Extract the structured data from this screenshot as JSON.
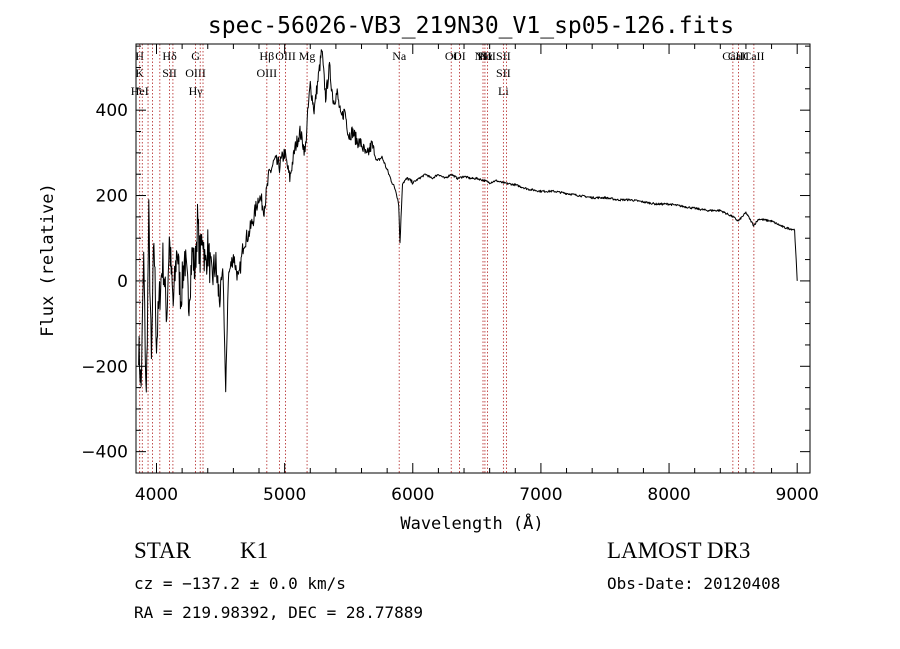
{
  "chart_data": {
    "type": "line",
    "title": "spec-56026-VB3_219N30_V1_sp05-126.fits",
    "xlabel": "Wavelength (Å)",
    "ylabel": "Flux (relative)",
    "xlim": [
      3840,
      9100
    ],
    "ylim": [
      -450,
      555
    ],
    "xticks": [
      4000,
      5000,
      6000,
      7000,
      8000,
      9000
    ],
    "xtick_labels": [
      "4000",
      "5000",
      "6000",
      "7000",
      "8000",
      "9000"
    ],
    "yticks": [
      -400,
      -200,
      0,
      200,
      400
    ],
    "ytick_labels": [
      "−400",
      "−200",
      "0",
      "200",
      "400"
    ],
    "line_color": "#000000",
    "marker_color": "#b22222",
    "series": [
      {
        "name": "flux",
        "x": [
          3860,
          3880,
          3900,
          3920,
          3940,
          3960,
          3980,
          4000,
          4020,
          4050,
          4080,
          4100,
          4130,
          4160,
          4190,
          4220,
          4250,
          4280,
          4300,
          4320,
          4340,
          4360,
          4380,
          4400,
          4430,
          4460,
          4490,
          4520,
          4540,
          4560,
          4600,
          4640,
          4680,
          4720,
          4760,
          4800,
          4840,
          4880,
          4920,
          4960,
          5000,
          5040,
          5080,
          5120,
          5160,
          5180,
          5200,
          5230,
          5260,
          5290,
          5320,
          5350,
          5380,
          5410,
          5440,
          5470,
          5500,
          5530,
          5560,
          5600,
          5640,
          5680,
          5720,
          5760,
          5800,
          5840,
          5870,
          5890,
          5900,
          5920,
          5960,
          6000,
          6050,
          6100,
          6150,
          6200,
          6250,
          6300,
          6350,
          6400,
          6450,
          6500,
          6560,
          6600,
          6650,
          6700,
          6800,
          6900,
          7000,
          7100,
          7200,
          7300,
          7400,
          7500,
          7600,
          7700,
          7800,
          7900,
          8000,
          8100,
          8200,
          8300,
          8400,
          8500,
          8540,
          8600,
          8660,
          8700,
          8800,
          8900,
          8980,
          9000
        ],
        "y": [
          -150,
          -250,
          50,
          -280,
          150,
          -200,
          100,
          -150,
          -50,
          50,
          -80,
          100,
          -60,
          80,
          -40,
          60,
          -50,
          70,
          20,
          140,
          50,
          120,
          30,
          80,
          0,
          40,
          -40,
          20,
          -270,
          10,
          60,
          0,
          90,
          110,
          150,
          200,
          170,
          250,
          280,
          270,
          300,
          240,
          310,
          350,
          300,
          390,
          460,
          400,
          470,
          540,
          430,
          500,
          420,
          440,
          380,
          400,
          340,
          350,
          330,
          320,
          290,
          320,
          280,
          290,
          260,
          230,
          210,
          180,
          90,
          230,
          240,
          230,
          240,
          250,
          240,
          250,
          240,
          250,
          240,
          245,
          240,
          240,
          235,
          230,
          235,
          230,
          225,
          215,
          210,
          210,
          205,
          200,
          195,
          195,
          190,
          190,
          185,
          180,
          180,
          175,
          170,
          165,
          165,
          150,
          140,
          160,
          130,
          145,
          140,
          125,
          120,
          0
        ]
      }
    ],
    "lines": [
      {
        "x": 3869,
        "labels": [
          "H",
          "K",
          "HeI"
        ]
      },
      {
        "x": 3889,
        "labels": []
      },
      {
        "x": 3934,
        "labels": []
      },
      {
        "x": 3969,
        "labels": []
      },
      {
        "x": 4026,
        "labels": []
      },
      {
        "x": 4102,
        "labels": [
          "Hδ",
          "SII"
        ]
      },
      {
        "x": 4128,
        "labels": []
      },
      {
        "x": 4305,
        "labels": [
          "G",
          "OIII",
          "Hγ"
        ]
      },
      {
        "x": 4341,
        "labels": []
      },
      {
        "x": 4363,
        "labels": []
      },
      {
        "x": 4861,
        "labels": [
          "Hβ",
          "OIII"
        ]
      },
      {
        "x": 4959,
        "labels": []
      },
      {
        "x": 5007,
        "labels": [
          "OIII"
        ]
      },
      {
        "x": 5175,
        "labels": [
          "Mg"
        ]
      },
      {
        "x": 5894,
        "labels": [
          "Na"
        ]
      },
      {
        "x": 6300,
        "labels": [
          "OI"
        ]
      },
      {
        "x": 6364,
        "labels": [
          "OI"
        ]
      },
      {
        "x": 6548,
        "labels": [
          "NII"
        ]
      },
      {
        "x": 6563,
        "labels": [
          "Hα"
        ]
      },
      {
        "x": 6584,
        "labels": [
          "NII"
        ]
      },
      {
        "x": 6707,
        "labels": [
          "SII",
          "SII",
          "Li"
        ]
      },
      {
        "x": 6731,
        "labels": []
      },
      {
        "x": 8498,
        "labels": [
          "CaII"
        ]
      },
      {
        "x": 8542,
        "labels": [
          "CaII"
        ]
      },
      {
        "x": 8662,
        "labels": [
          "CaII"
        ]
      }
    ]
  },
  "info": {
    "object_class": "STAR",
    "subclass": "K1",
    "survey": "LAMOST DR3",
    "cz": "cz = −137.2 ± 0.0 km/s",
    "obs_date": "Obs-Date: 20120408",
    "coords": "RA = 219.98392, DEC =  28.77889"
  }
}
